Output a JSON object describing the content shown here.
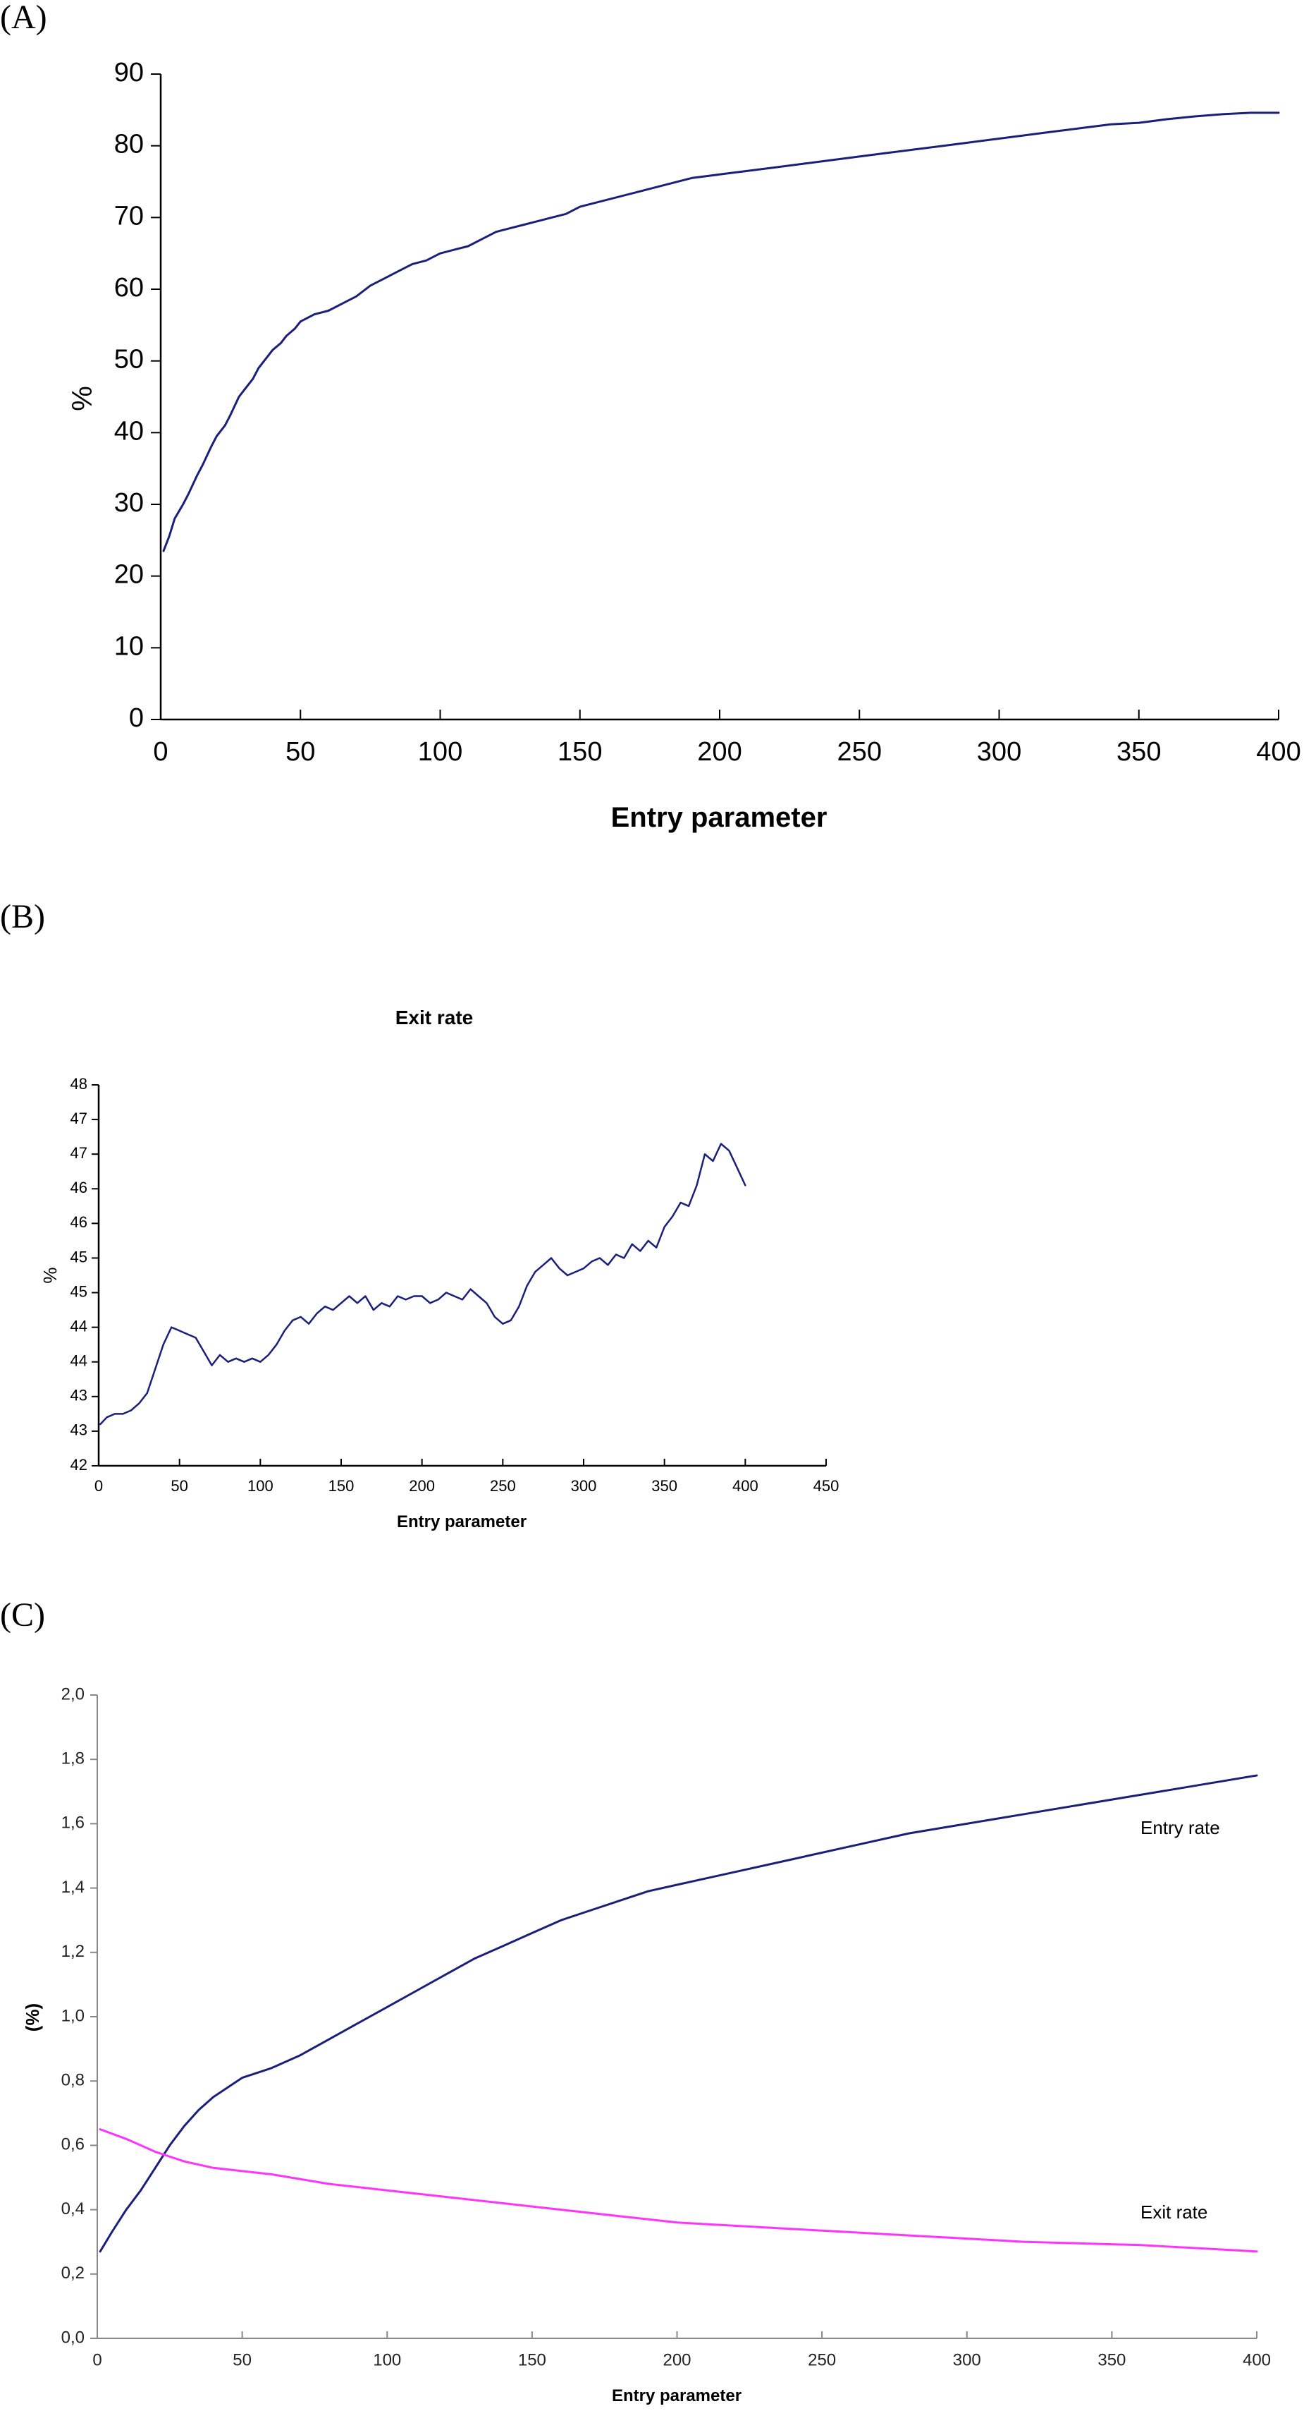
{
  "panels": {
    "a": "(A)",
    "b": "(B)",
    "c": "(C)"
  },
  "chart_data": [
    {
      "type": "line",
      "xlabel": "Entry parameter",
      "ylabel": "%",
      "xlim": [
        0,
        400
      ],
      "ylim": [
        0,
        90
      ],
      "x_ticks": [
        "0",
        "50",
        "100",
        "150",
        "200",
        "250",
        "300",
        "350",
        "400"
      ],
      "y_ticks": [
        "0",
        "10",
        "20",
        "30",
        "40",
        "50",
        "60",
        "70",
        "80",
        "90"
      ],
      "grid": false,
      "series": [
        {
          "color": "#1a1f7a",
          "x": [
            1,
            3,
            5,
            8,
            10,
            13,
            15,
            18,
            20,
            23,
            25,
            28,
            30,
            33,
            35,
            38,
            40,
            43,
            45,
            48,
            50,
            55,
            60,
            65,
            70,
            75,
            80,
            85,
            90,
            95,
            100,
            105,
            110,
            115,
            120,
            125,
            130,
            135,
            140,
            145,
            150,
            160,
            170,
            180,
            190,
            200,
            210,
            220,
            230,
            240,
            250,
            260,
            270,
            280,
            290,
            300,
            310,
            320,
            330,
            340,
            350,
            360,
            370,
            380,
            390,
            400
          ],
          "y": [
            23.5,
            25.5,
            28,
            30,
            31.5,
            34,
            35.5,
            38,
            39.5,
            41,
            42.5,
            45,
            46,
            47.5,
            49,
            50.5,
            51.5,
            52.5,
            53.5,
            54.5,
            55.5,
            56.5,
            57,
            58,
            59,
            60.5,
            61.5,
            62.5,
            63.5,
            64,
            65,
            65.5,
            66,
            67,
            68,
            68.5,
            69,
            69.5,
            70,
            70.5,
            71.5,
            72.5,
            73.5,
            74.5,
            75.5,
            76,
            76.5,
            77,
            77.5,
            78,
            78.5,
            79,
            79.5,
            80,
            80.5,
            81,
            81.5,
            82,
            82.5,
            83,
            83.2,
            83.7,
            84.1,
            84.4,
            84.6,
            84.6
          ]
        }
      ]
    },
    {
      "type": "line",
      "title": "Exit rate",
      "xlabel": "Entry parameter",
      "ylabel": "%",
      "xlim": [
        0,
        450
      ],
      "ylim": [
        0,
        11
      ],
      "x_ticks": [
        "0",
        "50",
        "100",
        "150",
        "200",
        "250",
        "300",
        "350",
        "400",
        "450"
      ],
      "y_ticks": [
        "42",
        "43",
        "43",
        "44",
        "44",
        "45",
        "45",
        "46",
        "46",
        "47",
        "47",
        "48"
      ],
      "grid": false,
      "series": [
        {
          "color": "#1a1f7a",
          "x": [
            1,
            5,
            10,
            15,
            20,
            25,
            30,
            35,
            40,
            45,
            50,
            55,
            60,
            65,
            70,
            75,
            80,
            85,
            90,
            95,
            100,
            105,
            110,
            115,
            120,
            125,
            130,
            135,
            140,
            145,
            150,
            155,
            160,
            165,
            170,
            175,
            180,
            185,
            190,
            195,
            200,
            205,
            210,
            215,
            220,
            225,
            230,
            235,
            240,
            245,
            250,
            255,
            260,
            265,
            270,
            275,
            280,
            285,
            290,
            295,
            300,
            305,
            310,
            315,
            320,
            325,
            330,
            335,
            340,
            345,
            350,
            355,
            360,
            365,
            370,
            375,
            380,
            385,
            390,
            395,
            400
          ],
          "y": [
            1.2,
            1.4,
            1.5,
            1.5,
            1.6,
            1.8,
            2.1,
            2.8,
            3.5,
            4.0,
            3.9,
            3.8,
            3.7,
            3.3,
            2.9,
            3.2,
            3.0,
            3.1,
            3.0,
            3.1,
            3.0,
            3.2,
            3.5,
            3.9,
            4.2,
            4.3,
            4.1,
            4.4,
            4.6,
            4.5,
            4.7,
            4.9,
            4.7,
            4.9,
            4.5,
            4.7,
            4.6,
            4.9,
            4.8,
            4.9,
            4.9,
            4.7,
            4.8,
            5.0,
            4.9,
            4.8,
            5.1,
            4.9,
            4.7,
            4.3,
            4.1,
            4.2,
            4.6,
            5.2,
            5.6,
            5.8,
            6.0,
            5.7,
            5.5,
            5.6,
            5.7,
            5.9,
            6.0,
            5.8,
            6.1,
            6.0,
            6.4,
            6.2,
            6.5,
            6.3,
            6.9,
            7.2,
            7.6,
            7.5,
            8.1,
            9.0,
            8.8,
            9.3,
            9.1,
            8.6,
            8.1
          ]
        }
      ]
    },
    {
      "type": "line",
      "xlabel": "Entry parameter",
      "ylabel": "(%)",
      "xlim": [
        0,
        400
      ],
      "ylim": [
        0,
        2.0
      ],
      "x_ticks": [
        "0",
        "50",
        "100",
        "150",
        "200",
        "250",
        "300",
        "350",
        "400"
      ],
      "y_ticks": [
        "0,0",
        "0,2",
        "0,4",
        "0,6",
        "0,8",
        "1,0",
        "1,2",
        "1,4",
        "1,6",
        "1,8",
        "2,0"
      ],
      "grid": false,
      "series": [
        {
          "name": "Entry rate",
          "color": "#1a1f7a",
          "x": [
            1,
            5,
            10,
            15,
            20,
            25,
            30,
            35,
            40,
            45,
            50,
            60,
            70,
            80,
            90,
            100,
            110,
            120,
            130,
            140,
            150,
            160,
            170,
            180,
            190,
            200,
            220,
            240,
            260,
            280,
            300,
            320,
            340,
            360,
            380,
            400
          ],
          "y": [
            0.27,
            0.33,
            0.4,
            0.46,
            0.53,
            0.6,
            0.66,
            0.71,
            0.75,
            0.78,
            0.81,
            0.84,
            0.88,
            0.93,
            0.98,
            1.03,
            1.08,
            1.13,
            1.18,
            1.22,
            1.26,
            1.3,
            1.33,
            1.36,
            1.39,
            1.41,
            1.45,
            1.49,
            1.53,
            1.57,
            1.6,
            1.63,
            1.66,
            1.69,
            1.72,
            1.75
          ]
        },
        {
          "name": "Exit rate",
          "color": "#ff33ff",
          "x": [
            1,
            10,
            20,
            30,
            40,
            50,
            60,
            80,
            100,
            120,
            140,
            160,
            180,
            200,
            220,
            240,
            260,
            280,
            300,
            320,
            340,
            360,
            380,
            400
          ],
          "y": [
            0.65,
            0.62,
            0.58,
            0.55,
            0.53,
            0.52,
            0.51,
            0.48,
            0.46,
            0.44,
            0.42,
            0.4,
            0.38,
            0.36,
            0.35,
            0.34,
            0.33,
            0.32,
            0.31,
            0.3,
            0.295,
            0.29,
            0.28,
            0.27
          ]
        }
      ]
    }
  ]
}
